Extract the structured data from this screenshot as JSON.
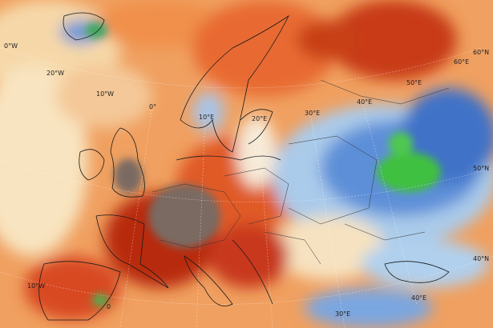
{
  "graticule_labels": [
    "0°W",
    "20°W",
    "10°W",
    "0°",
    "10°E",
    "20°E",
    "30°E",
    "40°E",
    "50°E",
    "60°E",
    "60°N",
    "50°N",
    "10°W",
    "0",
    "40°N",
    "40°E",
    "30°E"
  ]
}
